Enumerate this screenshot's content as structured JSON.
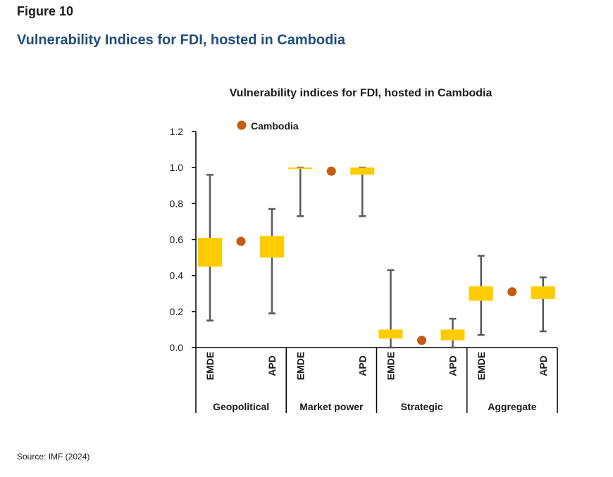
{
  "figure": {
    "label": "Figure 10",
    "title": "Vulnerability Indices for FDI, hosted in Cambodia",
    "source": "Source: IMF (2024)"
  },
  "chart_data": {
    "type": "boxplot",
    "title": "Vulnerability indices for FDI, hosted in Cambodia",
    "ylim": [
      0,
      1.2
    ],
    "yticks": [
      "0.0",
      "0.2",
      "0.4",
      "0.6",
      "0.8",
      "1.0",
      "1.2"
    ],
    "legend": {
      "label": "Cambodia",
      "position": "top-left"
    },
    "colors": {
      "box": "#ffcc00",
      "whisker": "#595959",
      "marker": "#c55a11",
      "axis": "#000000"
    },
    "groups": [
      {
        "name": "Geopolitical",
        "cambodia": 0.59,
        "boxes": [
          {
            "label": "EMDE",
            "min": 0.15,
            "q1": 0.45,
            "q3": 0.61,
            "max": 0.96
          },
          {
            "label": "APD",
            "min": 0.19,
            "q1": 0.5,
            "q3": 0.62,
            "max": 0.77
          }
        ]
      },
      {
        "name": "Market power",
        "cambodia": 0.98,
        "boxes": [
          {
            "label": "EMDE",
            "min": 0.73,
            "q1": 0.995,
            "q3": 1.0,
            "max": 1.0
          },
          {
            "label": "APD",
            "min": 0.73,
            "q1": 0.96,
            "q3": 1.0,
            "max": 1.0
          }
        ]
      },
      {
        "name": "Strategic",
        "cambodia": 0.04,
        "boxes": [
          {
            "label": "EMDE",
            "min": 0.0,
            "q1": 0.05,
            "q3": 0.1,
            "max": 0.43
          },
          {
            "label": "APD",
            "min": 0.0,
            "q1": 0.04,
            "q3": 0.1,
            "max": 0.16
          }
        ]
      },
      {
        "name": "Aggregate",
        "cambodia": 0.31,
        "boxes": [
          {
            "label": "EMDE",
            "min": 0.07,
            "q1": 0.26,
            "q3": 0.34,
            "max": 0.51
          },
          {
            "label": "APD",
            "min": 0.09,
            "q1": 0.27,
            "q3": 0.34,
            "max": 0.39
          }
        ]
      }
    ]
  }
}
